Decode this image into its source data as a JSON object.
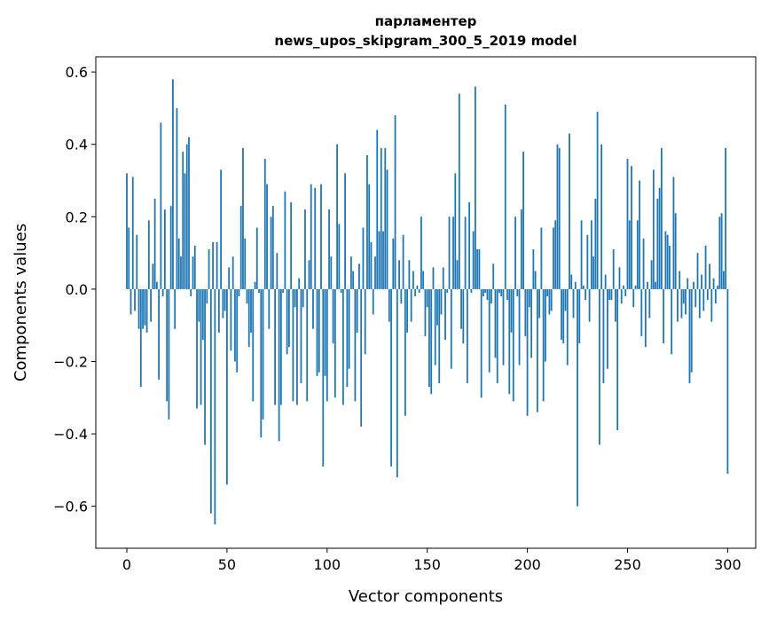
{
  "chart_data": {
    "type": "bar",
    "title": "парламентер",
    "subtitle": "news_upos_skipgram_300_5_2019 model",
    "xlabel": "Vector components",
    "ylabel": "Components values",
    "xlim": [
      -15.5,
      314
    ],
    "ylim": [
      -0.716,
      0.642
    ],
    "xticks": [
      0,
      50,
      100,
      150,
      200,
      250,
      300
    ],
    "yticks": [
      -0.6,
      -0.4,
      -0.2,
      0.0,
      0.2,
      0.4,
      0.6
    ],
    "ytick_labels": [
      "−0.6",
      "−0.4",
      "−0.2",
      "0.0",
      "0.2",
      "0.4",
      "0.6"
    ],
    "xtick_labels": [
      "0",
      "50",
      "100",
      "150",
      "200",
      "250",
      "300"
    ],
    "grid": false,
    "color": "#1f77b4",
    "values": [
      0.32,
      0.17,
      -0.07,
      0.31,
      -0.06,
      0.15,
      -0.11,
      -0.27,
      -0.11,
      -0.1,
      -0.12,
      0.19,
      -0.09,
      0.07,
      0.25,
      0.02,
      -0.25,
      0.46,
      -0.02,
      0.22,
      -0.31,
      -0.36,
      0.23,
      0.58,
      -0.11,
      0.5,
      0.14,
      0.09,
      0.38,
      0.32,
      0.4,
      0.42,
      -0.02,
      0.09,
      0.12,
      -0.33,
      -0.09,
      -0.32,
      -0.14,
      -0.43,
      -0.04,
      0.11,
      -0.62,
      0.13,
      -0.65,
      0.13,
      -0.12,
      0.33,
      -0.08,
      -0.06,
      -0.54,
      0.06,
      -0.17,
      0.09,
      -0.2,
      -0.23,
      -0.02,
      0.23,
      0.39,
      0.14,
      -0.04,
      -0.16,
      -0.12,
      -0.31,
      0.02,
      0.17,
      -0.01,
      -0.41,
      -0.36,
      0.36,
      0.29,
      -0.11,
      0.2,
      0.23,
      -0.32,
      0.1,
      -0.42,
      -0.32,
      -0.01,
      0.27,
      -0.18,
      -0.16,
      0.24,
      -0.31,
      -0.05,
      -0.32,
      0.03,
      -0.26,
      -0.05,
      0.22,
      -0.31,
      0.08,
      0.29,
      -0.11,
      0.28,
      -0.24,
      -0.23,
      0.29,
      -0.49,
      -0.24,
      -0.31,
      0.22,
      0.09,
      -0.15,
      -0.3,
      0.4,
      0.18,
      -0.01,
      -0.32,
      0.32,
      -0.27,
      -0.22,
      0.09,
      0.05,
      -0.31,
      -0.12,
      0.07,
      -0.38,
      0.17,
      -0.18,
      0.37,
      0.29,
      0.13,
      -0.07,
      0.09,
      0.44,
      0.16,
      0.39,
      0.16,
      0.39,
      0.33,
      -0.09,
      -0.49,
      0.14,
      0.48,
      -0.52,
      0.08,
      -0.04,
      0.15,
      -0.35,
      -0.12,
      0.08,
      -0.09,
      0.05,
      -0.02,
      0.01,
      -0.01,
      0.2,
      0.05,
      -0.13,
      -0.05,
      -0.27,
      -0.29,
      0.06,
      -0.21,
      -0.1,
      -0.26,
      -0.07,
      0.06,
      -0.14,
      -0.01,
      0.2,
      -0.22,
      0.2,
      0.32,
      0.08,
      0.54,
      -0.11,
      -0.15,
      0.2,
      -0.26,
      0.24,
      -0.01,
      0.16,
      0.56,
      0.11,
      0.11,
      -0.3,
      -0.02,
      -0.01,
      -0.03,
      -0.23,
      -0.04,
      0.07,
      -0.19,
      -0.26,
      -0.01,
      -0.02,
      -0.21,
      0.51,
      -0.03,
      -0.29,
      -0.12,
      -0.31,
      0.2,
      -0.02,
      -0.21,
      0.22,
      0.38,
      -0.13,
      -0.35,
      -0.05,
      -0.19,
      0.11,
      0.05,
      -0.34,
      -0.08,
      0.17,
      -0.31,
      -0.2,
      -0.02,
      -0.07,
      -0.06,
      0.17,
      0.19,
      0.4,
      0.39,
      -0.14,
      -0.15,
      -0.06,
      -0.21,
      0.43,
      0.04,
      -0.08,
      0.02,
      -0.6,
      -0.15,
      0.19,
      0.01,
      -0.03,
      0.15,
      -0.09,
      0.19,
      0.09,
      0.25,
      0.49,
      -0.43,
      0.4,
      -0.26,
      0.04,
      -0.22,
      -0.03,
      -0.03,
      0.11,
      -0.09,
      -0.39,
      0.06,
      -0.04,
      0.01,
      -0.02,
      0.36,
      0.19,
      0.34,
      -0.05,
      0.01,
      0.19,
      0.3,
      -0.13,
      0.14,
      -0.16,
      0.02,
      -0.08,
      0.08,
      0.33,
      0.02,
      0.25,
      0.28,
      0.39,
      -0.15,
      0.16,
      0.15,
      0.12,
      -0.18,
      0.31,
      0.21,
      -0.09,
      0.05,
      -0.08,
      -0.04,
      -0.07,
      0.03,
      -0.26,
      -0.23,
      0.02,
      -0.05,
      0.1,
      -0.08,
      0.04,
      -0.06,
      0.12,
      -0.03,
      0.07,
      -0.09,
      0.03,
      -0.04,
      0.01,
      0.2,
      0.21,
      0.05,
      0.39,
      -0.51
    ]
  }
}
